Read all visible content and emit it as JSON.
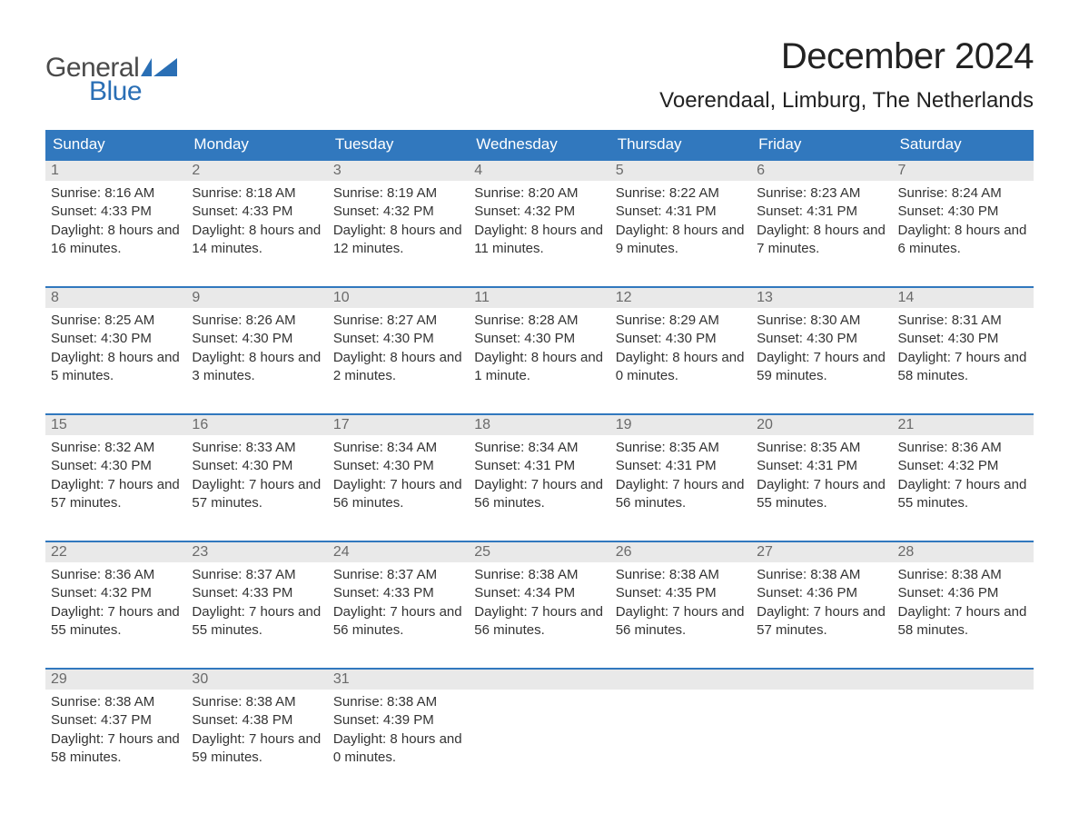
{
  "logo": {
    "text1": "General",
    "text2": "Blue",
    "flag_color": "#2a6fb5"
  },
  "title": "December 2024",
  "location": "Voerendaal, Limburg, The Netherlands",
  "colors": {
    "header_bg": "#3178be",
    "header_text": "#ffffff",
    "daynum_bg": "#e9e9e9",
    "daynum_text": "#6a6a6a",
    "body_text": "#333333",
    "rule": "#3178be"
  },
  "day_names": [
    "Sunday",
    "Monday",
    "Tuesday",
    "Wednesday",
    "Thursday",
    "Friday",
    "Saturday"
  ],
  "weeks": [
    [
      {
        "n": "1",
        "sr": "Sunrise: 8:16 AM",
        "ss": "Sunset: 4:33 PM",
        "dl": "Daylight: 8 hours and 16 minutes."
      },
      {
        "n": "2",
        "sr": "Sunrise: 8:18 AM",
        "ss": "Sunset: 4:33 PM",
        "dl": "Daylight: 8 hours and 14 minutes."
      },
      {
        "n": "3",
        "sr": "Sunrise: 8:19 AM",
        "ss": "Sunset: 4:32 PM",
        "dl": "Daylight: 8 hours and 12 minutes."
      },
      {
        "n": "4",
        "sr": "Sunrise: 8:20 AM",
        "ss": "Sunset: 4:32 PM",
        "dl": "Daylight: 8 hours and 11 minutes."
      },
      {
        "n": "5",
        "sr": "Sunrise: 8:22 AM",
        "ss": "Sunset: 4:31 PM",
        "dl": "Daylight: 8 hours and 9 minutes."
      },
      {
        "n": "6",
        "sr": "Sunrise: 8:23 AM",
        "ss": "Sunset: 4:31 PM",
        "dl": "Daylight: 8 hours and 7 minutes."
      },
      {
        "n": "7",
        "sr": "Sunrise: 8:24 AM",
        "ss": "Sunset: 4:30 PM",
        "dl": "Daylight: 8 hours and 6 minutes."
      }
    ],
    [
      {
        "n": "8",
        "sr": "Sunrise: 8:25 AM",
        "ss": "Sunset: 4:30 PM",
        "dl": "Daylight: 8 hours and 5 minutes."
      },
      {
        "n": "9",
        "sr": "Sunrise: 8:26 AM",
        "ss": "Sunset: 4:30 PM",
        "dl": "Daylight: 8 hours and 3 minutes."
      },
      {
        "n": "10",
        "sr": "Sunrise: 8:27 AM",
        "ss": "Sunset: 4:30 PM",
        "dl": "Daylight: 8 hours and 2 minutes."
      },
      {
        "n": "11",
        "sr": "Sunrise: 8:28 AM",
        "ss": "Sunset: 4:30 PM",
        "dl": "Daylight: 8 hours and 1 minute."
      },
      {
        "n": "12",
        "sr": "Sunrise: 8:29 AM",
        "ss": "Sunset: 4:30 PM",
        "dl": "Daylight: 8 hours and 0 minutes."
      },
      {
        "n": "13",
        "sr": "Sunrise: 8:30 AM",
        "ss": "Sunset: 4:30 PM",
        "dl": "Daylight: 7 hours and 59 minutes."
      },
      {
        "n": "14",
        "sr": "Sunrise: 8:31 AM",
        "ss": "Sunset: 4:30 PM",
        "dl": "Daylight: 7 hours and 58 minutes."
      }
    ],
    [
      {
        "n": "15",
        "sr": "Sunrise: 8:32 AM",
        "ss": "Sunset: 4:30 PM",
        "dl": "Daylight: 7 hours and 57 minutes."
      },
      {
        "n": "16",
        "sr": "Sunrise: 8:33 AM",
        "ss": "Sunset: 4:30 PM",
        "dl": "Daylight: 7 hours and 57 minutes."
      },
      {
        "n": "17",
        "sr": "Sunrise: 8:34 AM",
        "ss": "Sunset: 4:30 PM",
        "dl": "Daylight: 7 hours and 56 minutes."
      },
      {
        "n": "18",
        "sr": "Sunrise: 8:34 AM",
        "ss": "Sunset: 4:31 PM",
        "dl": "Daylight: 7 hours and 56 minutes."
      },
      {
        "n": "19",
        "sr": "Sunrise: 8:35 AM",
        "ss": "Sunset: 4:31 PM",
        "dl": "Daylight: 7 hours and 56 minutes."
      },
      {
        "n": "20",
        "sr": "Sunrise: 8:35 AM",
        "ss": "Sunset: 4:31 PM",
        "dl": "Daylight: 7 hours and 55 minutes."
      },
      {
        "n": "21",
        "sr": "Sunrise: 8:36 AM",
        "ss": "Sunset: 4:32 PM",
        "dl": "Daylight: 7 hours and 55 minutes."
      }
    ],
    [
      {
        "n": "22",
        "sr": "Sunrise: 8:36 AM",
        "ss": "Sunset: 4:32 PM",
        "dl": "Daylight: 7 hours and 55 minutes."
      },
      {
        "n": "23",
        "sr": "Sunrise: 8:37 AM",
        "ss": "Sunset: 4:33 PM",
        "dl": "Daylight: 7 hours and 55 minutes."
      },
      {
        "n": "24",
        "sr": "Sunrise: 8:37 AM",
        "ss": "Sunset: 4:33 PM",
        "dl": "Daylight: 7 hours and 56 minutes."
      },
      {
        "n": "25",
        "sr": "Sunrise: 8:38 AM",
        "ss": "Sunset: 4:34 PM",
        "dl": "Daylight: 7 hours and 56 minutes."
      },
      {
        "n": "26",
        "sr": "Sunrise: 8:38 AM",
        "ss": "Sunset: 4:35 PM",
        "dl": "Daylight: 7 hours and 56 minutes."
      },
      {
        "n": "27",
        "sr": "Sunrise: 8:38 AM",
        "ss": "Sunset: 4:36 PM",
        "dl": "Daylight: 7 hours and 57 minutes."
      },
      {
        "n": "28",
        "sr": "Sunrise: 8:38 AM",
        "ss": "Sunset: 4:36 PM",
        "dl": "Daylight: 7 hours and 58 minutes."
      }
    ],
    [
      {
        "n": "29",
        "sr": "Sunrise: 8:38 AM",
        "ss": "Sunset: 4:37 PM",
        "dl": "Daylight: 7 hours and 58 minutes."
      },
      {
        "n": "30",
        "sr": "Sunrise: 8:38 AM",
        "ss": "Sunset: 4:38 PM",
        "dl": "Daylight: 7 hours and 59 minutes."
      },
      {
        "n": "31",
        "sr": "Sunrise: 8:38 AM",
        "ss": "Sunset: 4:39 PM",
        "dl": "Daylight: 8 hours and 0 minutes."
      },
      {
        "n": "",
        "sr": "",
        "ss": "",
        "dl": ""
      },
      {
        "n": "",
        "sr": "",
        "ss": "",
        "dl": ""
      },
      {
        "n": "",
        "sr": "",
        "ss": "",
        "dl": ""
      },
      {
        "n": "",
        "sr": "",
        "ss": "",
        "dl": ""
      }
    ]
  ]
}
